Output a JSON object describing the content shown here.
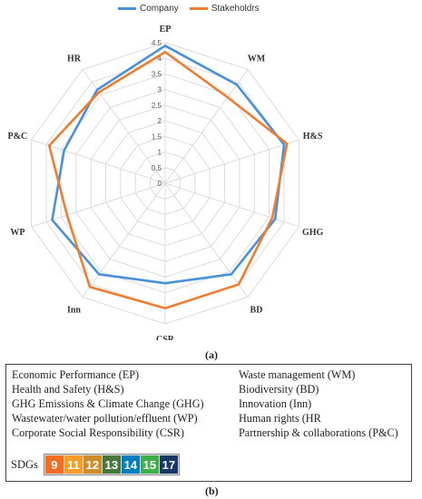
{
  "captions": {
    "a": "(a)",
    "b": "(b)"
  },
  "chart_data": {
    "type": "radar",
    "axes": [
      "EP",
      "WM",
      "H&S",
      "GHG",
      "BD",
      "CSR",
      "Inn",
      "WP",
      "P&C",
      "HR"
    ],
    "rlim": [
      0,
      4.5
    ],
    "ticks": [
      "0",
      "0.5",
      "1",
      "1.5",
      "2",
      "2.5",
      "3",
      "3.5",
      "4",
      "4.5"
    ],
    "legend_position": "top",
    "grid": true,
    "series": [
      {
        "name": "Company",
        "color": "#4a90d9",
        "values": [
          4.4,
          3.9,
          4.0,
          3.7,
          3.6,
          3.2,
          3.6,
          3.8,
          3.4,
          3.7
        ]
      },
      {
        "name": "Stakeholdrs",
        "color": "#ed7d31",
        "values": [
          4.2,
          3.4,
          4.1,
          3.6,
          4.0,
          4.0,
          4.1,
          3.3,
          3.9,
          3.6
        ]
      }
    ]
  },
  "abbreviations": [
    "Economic Performance (EP)",
    "Waste management (WM)",
    "Health and Safety (H&S)",
    "Biodiversity (BD)",
    "GHG Emissions & Climate Change (GHG)",
    "Innovation (Inn)",
    "Wastewater/water pollution/effluent (WP)",
    "Human rights (HR",
    "Corporate Social Responsibility (CSR)",
    "Partnership & collaborations (P&C)"
  ],
  "sdgs": {
    "label": "SDGs",
    "goals": [
      {
        "number": "9",
        "color": "#f36d25"
      },
      {
        "number": "11",
        "color": "#f99d26"
      },
      {
        "number": "12",
        "color": "#cf8d2a"
      },
      {
        "number": "13",
        "color": "#48773e"
      },
      {
        "number": "14",
        "color": "#007dbc"
      },
      {
        "number": "15",
        "color": "#3eb049"
      },
      {
        "number": "17",
        "color": "#183668"
      }
    ]
  }
}
